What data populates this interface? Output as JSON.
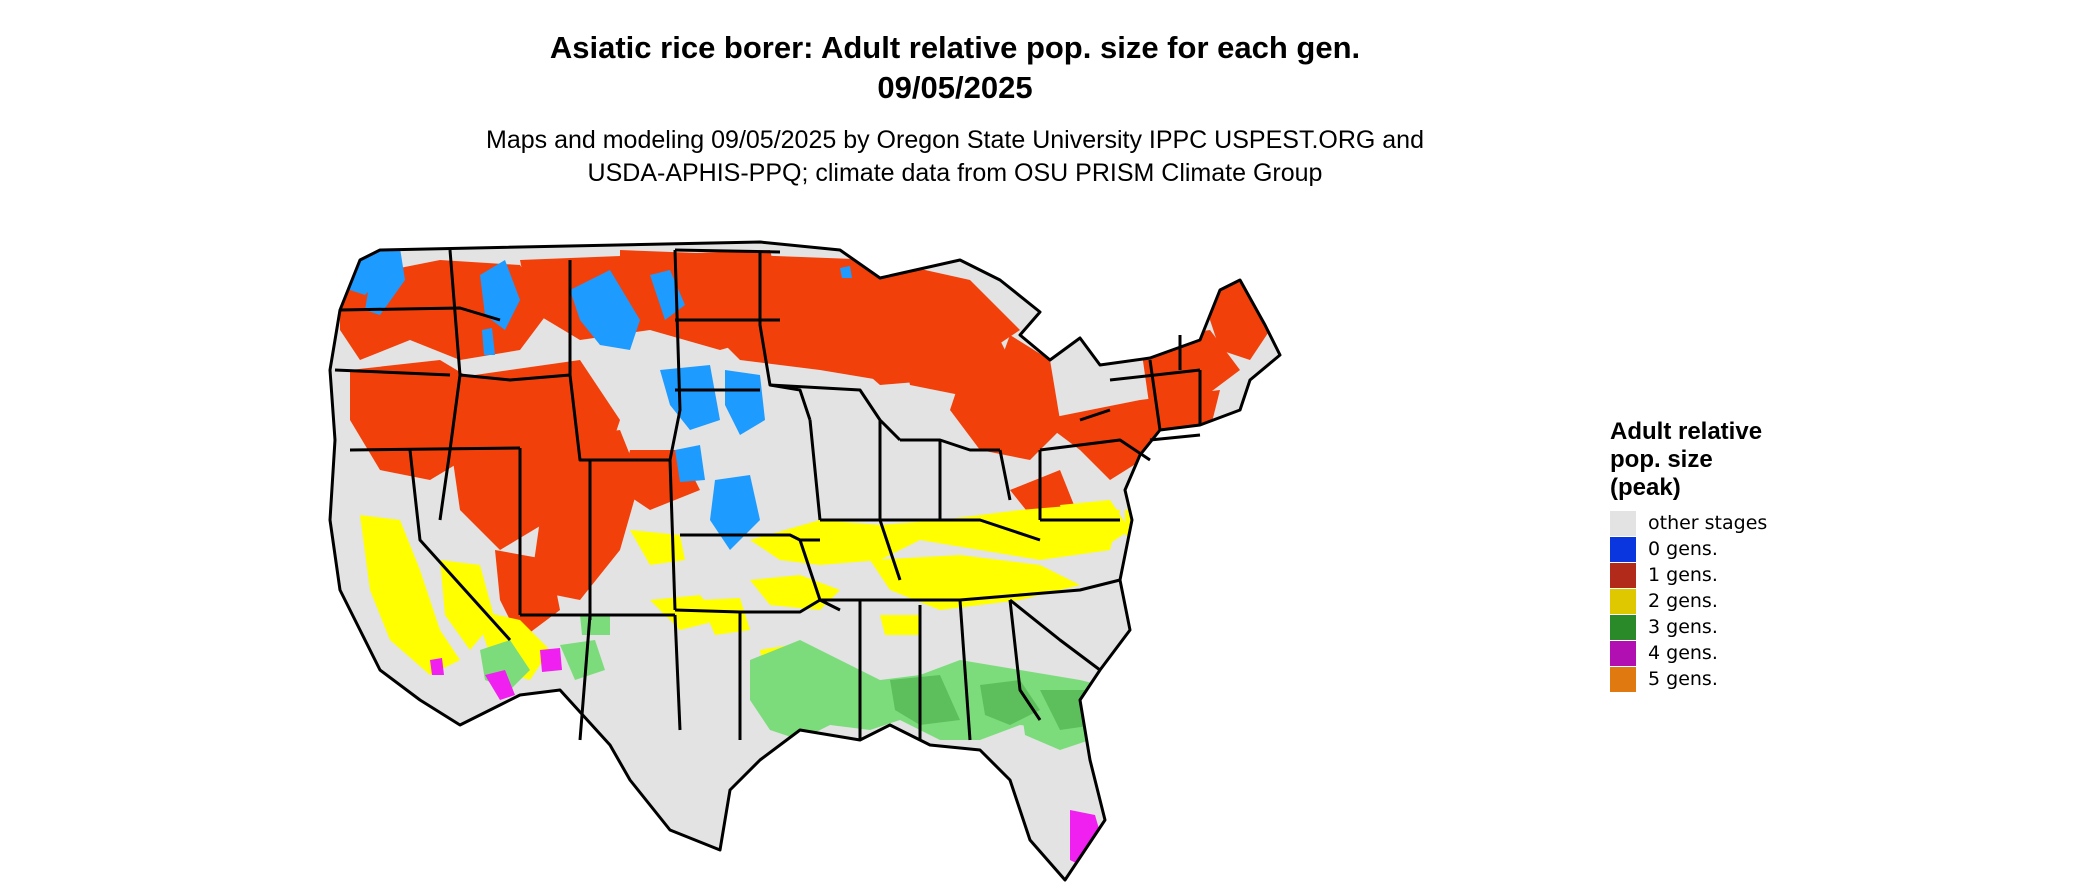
{
  "header": {
    "title_line1": "Asiatic rice borer: Adult relative pop. size for each gen.",
    "title_line2": "09/05/2025",
    "subtitle_line1": "Maps and modeling 09/05/2025 by Oregon State University IPPC USPEST.ORG and",
    "subtitle_line2": "USDA-APHIS-PPQ; climate data from OSU PRISM Climate Group"
  },
  "legend": {
    "title_line1": "Adult relative",
    "title_line2": "pop. size",
    "title_line3": "(peak)",
    "items": [
      {
        "label": "other stages",
        "color": "#e3e3e3"
      },
      {
        "label": "0 gens.",
        "color": "#0a36e0"
      },
      {
        "label": "1 gens.",
        "color": "#b22a1a"
      },
      {
        "label": "2 gens.",
        "color": "#e0c800"
      },
      {
        "label": "3 gens.",
        "color": "#2a8a2a"
      },
      {
        "label": "4 gens.",
        "color": "#b20fb2"
      },
      {
        "label": "5 gens.",
        "color": "#e07a10"
      }
    ]
  },
  "map_colors": {
    "land": "#e3e3e3",
    "gen0": "#1e9bff",
    "gen1": "#f2400a",
    "gen2": "#ffff00",
    "gen3": "#7cdc7c",
    "gen3_dark": "#5cbf5c",
    "gen4": "#f020f0",
    "border": "#000000"
  }
}
